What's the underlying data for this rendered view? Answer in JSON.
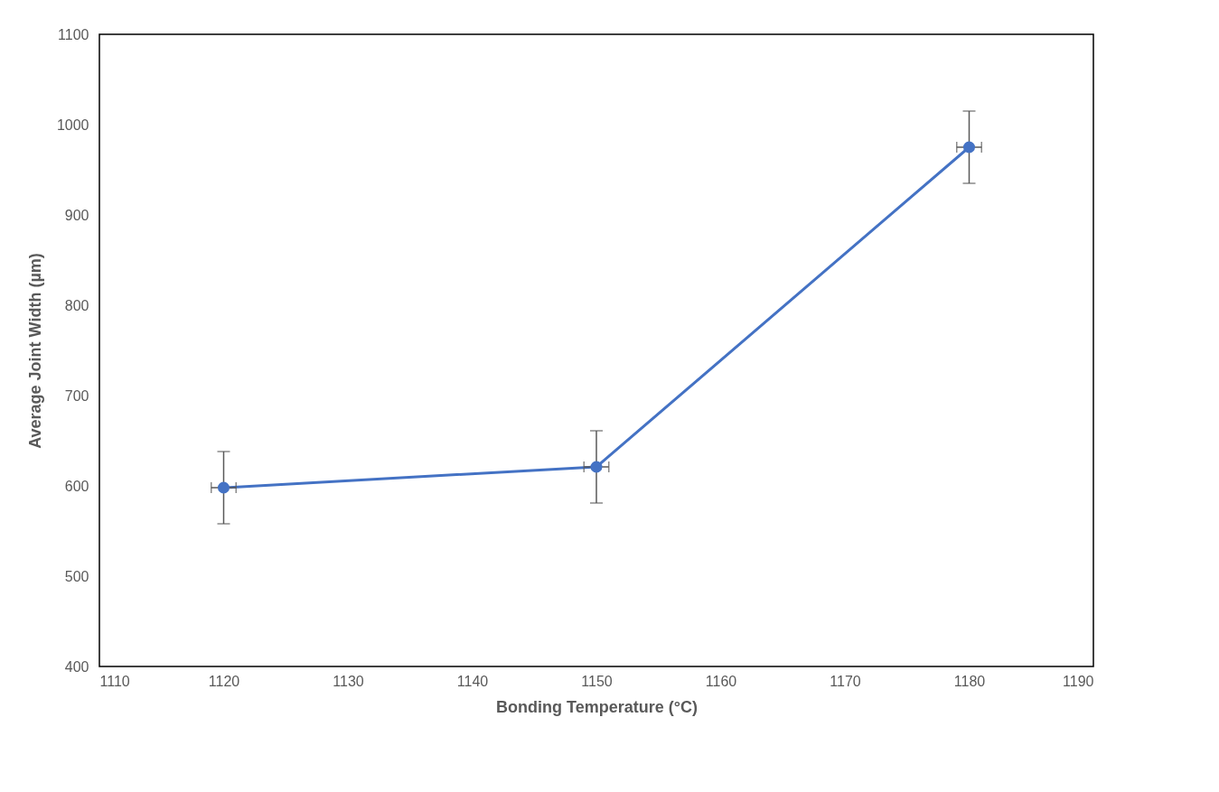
{
  "chart_data": {
    "type": "line",
    "xlabel": "Bonding Temperature (°C)",
    "ylabel": "Average Joint Width (µm)",
    "x": [
      1120,
      1150,
      1180
    ],
    "series": [
      {
        "color": "#4472c4",
        "values": [
          598,
          621,
          975
        ],
        "errors": [
          40,
          40,
          40
        ],
        "xerrors": [
          1,
          1,
          1
        ]
      }
    ],
    "xlim": [
      1110,
      1190
    ],
    "xticks": [
      1110,
      1120,
      1130,
      1140,
      1150,
      1160,
      1170,
      1180,
      1190
    ],
    "ylim": [
      400,
      1100
    ],
    "yticks": [
      400,
      500,
      600,
      700,
      800,
      900,
      1000,
      1100
    ],
    "grid": false,
    "marker": "circle",
    "line_style": "solid"
  }
}
